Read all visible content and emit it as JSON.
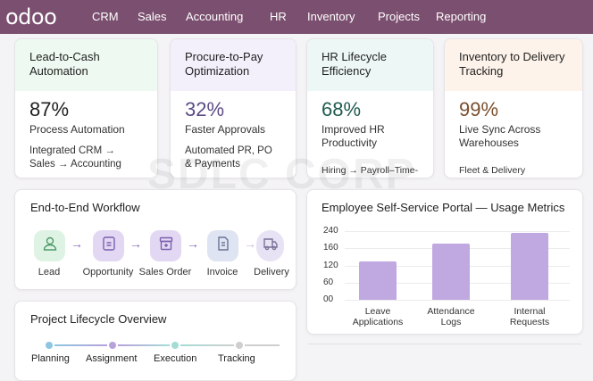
{
  "nav": {
    "logo": "odoo",
    "items": [
      "CRM",
      "Sales",
      "Accounting",
      "HR",
      "Inventory",
      "Projects",
      "Reporting"
    ],
    "bg": "#7b4f6f"
  },
  "kpis": [
    {
      "title": "Lead-to-Cash Automation",
      "value": "87%",
      "label": "Process Automation",
      "sub": "Integrated CRM → Sales → Accounting",
      "header_bg": "#eefaf1",
      "value_color": "#1f1f1f"
    },
    {
      "title": "Procure-to-Pay Optimization",
      "value": "32%",
      "label": "Faster Approvals",
      "sub": "Automated PR, PO & Payments",
      "header_bg": "#f3effb",
      "value_color": "#5c4a86"
    },
    {
      "title": "HR Lifecycle Efficiency",
      "value": "68%",
      "label": "Improved HR Productivity",
      "sub": "Hiring → Payroll–Time-Off",
      "header_bg": "#edf8f6",
      "value_color": "#1f5a50"
    },
    {
      "title": "Inventory to Delivery Tracking",
      "value": "99%",
      "label": "Live Sync Across Warehouses",
      "sub": "Fleet & Delivery Monitoring",
      "header_bg": "#fdf3ea",
      "value_color": "#7a4f2e"
    }
  ],
  "workflow": {
    "title": "End-to-End Workflow",
    "steps": [
      {
        "label": "Lead",
        "icon": "person-icon",
        "bg": "#def3e4",
        "fg": "#4f9a6a"
      },
      {
        "label": "Opportunity",
        "icon": "document-icon",
        "bg": "#e3d8f3",
        "fg": "#7a5fae"
      },
      {
        "label": "Sales Order",
        "icon": "box-icon",
        "bg": "#e3d8f3",
        "fg": "#7a5fae"
      },
      {
        "label": "Invoice",
        "icon": "invoice-icon",
        "bg": "#dfe4f2",
        "fg": "#6a7397"
      },
      {
        "label": "Delivery",
        "icon": "truck-icon",
        "bg": "#e7e3f4",
        "fg": "#7a7397"
      }
    ]
  },
  "project": {
    "title": "Project Lifecycle Overview",
    "phases": [
      {
        "label": "Planning",
        "color": "#8dc6e0"
      },
      {
        "label": "Assignment",
        "color": "#b8a2dc"
      },
      {
        "label": "Execution",
        "color": "#a5dcd6"
      },
      {
        "label": "Tracking",
        "color": "#cfcfcf"
      }
    ]
  },
  "watermark": "SDLC CORP",
  "chart_data": {
    "type": "bar",
    "title": "Employee Self-Service Portal — Usage Metrics",
    "categories": [
      "Leave Applications",
      "Attendance Logs",
      "Internal Requests"
    ],
    "values": [
      130,
      180,
      232
    ],
    "yticks": [
      "00",
      "60",
      "120",
      "160",
      "240"
    ],
    "ytick_values": [
      0,
      60,
      120,
      160,
      240
    ],
    "grid": true,
    "bar_color": "#c0a8e0"
  }
}
